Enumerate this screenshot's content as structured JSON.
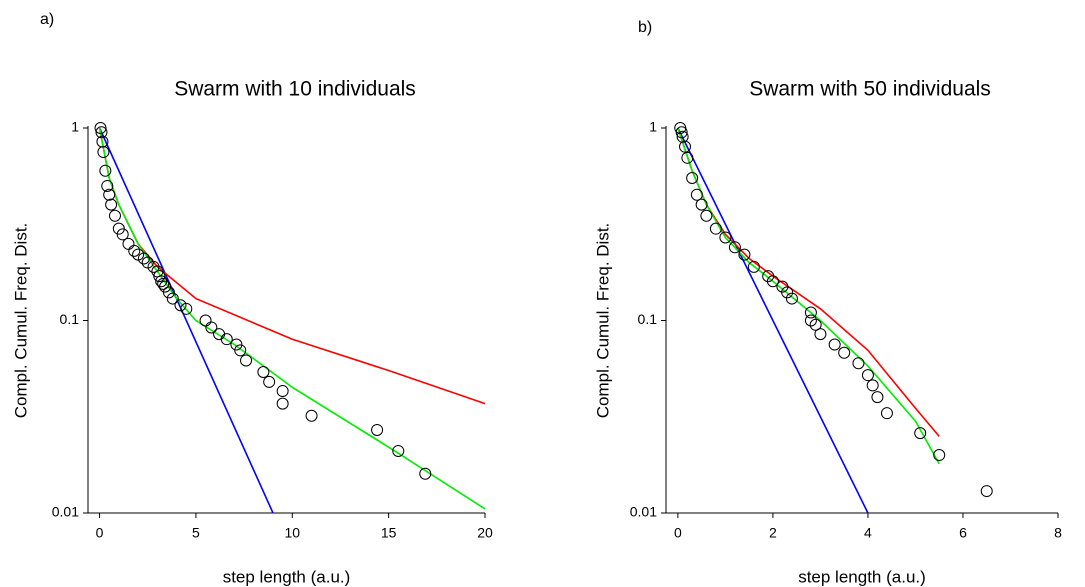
{
  "chart_data": [
    {
      "type": "scatter",
      "label": "a)",
      "title": "Swarm with 10 individuals",
      "x_label": "step length (a.u.)",
      "y_label": "Compl. Cumul. Freq. Dist.",
      "xlim": [
        -0.6,
        20
      ],
      "xticks": [
        0,
        5,
        10,
        15,
        20
      ],
      "ylim": [
        0.01,
        1
      ],
      "yticks": [
        1,
        0.1,
        0.01
      ],
      "log_y": true,
      "series": [
        {
          "type": "line",
          "color": "#0000ff",
          "x": [
            0,
            9
          ],
          "values": [
            1,
            0.01
          ]
        },
        {
          "type": "line",
          "color": "#ff0000",
          "x": [
            0,
            0.5,
            1,
            2,
            3,
            5,
            10,
            15,
            20
          ],
          "values": [
            1,
            0.55,
            0.4,
            0.25,
            0.19,
            0.13,
            0.08,
            0.055,
            0.037
          ]
        },
        {
          "type": "line",
          "color": "#00ee00",
          "x": [
            0,
            0.5,
            1,
            2,
            3,
            4,
            5,
            7,
            10,
            15,
            20
          ],
          "values": [
            1,
            0.55,
            0.4,
            0.25,
            0.18,
            0.13,
            0.1,
            0.075,
            0.045,
            0.022,
            0.0105
          ]
        },
        {
          "type": "markers",
          "color": "#000000",
          "x": [
            0.05,
            0.1,
            0.15,
            0.2,
            0.3,
            0.4,
            0.5,
            0.6,
            0.8,
            1.0,
            1.2,
            1.5,
            1.8,
            2.0,
            2.3,
            2.5,
            2.8,
            3.0,
            3.1,
            3.2,
            3.3,
            3.4,
            3.6,
            3.8,
            4.2,
            4.5,
            5.5,
            5.8,
            6.2,
            6.6,
            7.1,
            7.3,
            7.6,
            8.5,
            8.8,
            9.5,
            9.5,
            11,
            14.4,
            15.5,
            16.9
          ],
          "values": [
            1,
            0.95,
            0.85,
            0.75,
            0.6,
            0.5,
            0.45,
            0.4,
            0.35,
            0.3,
            0.28,
            0.25,
            0.23,
            0.22,
            0.21,
            0.2,
            0.19,
            0.18,
            0.17,
            0.16,
            0.155,
            0.15,
            0.14,
            0.13,
            0.12,
            0.115,
            0.1,
            0.092,
            0.085,
            0.08,
            0.075,
            0.07,
            0.062,
            0.054,
            0.048,
            0.043,
            0.037,
            0.032,
            0.027,
            0.021,
            0.016
          ]
        }
      ]
    },
    {
      "type": "scatter",
      "label": "b)",
      "title": "Swarm with 50 individuals",
      "x_label": "step length (a.u.)",
      "y_label": "Compl. Cumul. Freq. Dist.",
      "xlim": [
        -0.25,
        8
      ],
      "xticks": [
        0,
        2,
        4,
        6,
        8
      ],
      "ylim": [
        0.01,
        1
      ],
      "yticks": [
        1,
        0.1,
        0.01
      ],
      "log_y": true,
      "series": [
        {
          "type": "line",
          "color": "#0000ff",
          "x": [
            0,
            4
          ],
          "values": [
            1,
            0.01
          ]
        },
        {
          "type": "line",
          "color": "#ff0000",
          "x": [
            0,
            0.3,
            0.6,
            1,
            1.5,
            2,
            3,
            4,
            5,
            5.5
          ],
          "values": [
            1,
            0.6,
            0.4,
            0.28,
            0.21,
            0.17,
            0.115,
            0.07,
            0.035,
            0.025
          ]
        },
        {
          "type": "line",
          "color": "#00ee00",
          "x": [
            0,
            0.3,
            0.6,
            1,
            1.5,
            2,
            3,
            4,
            5,
            5.5
          ],
          "values": [
            1,
            0.6,
            0.4,
            0.27,
            0.2,
            0.16,
            0.1,
            0.058,
            0.03,
            0.018
          ]
        },
        {
          "type": "markers",
          "color": "#000000",
          "x": [
            0.05,
            0.08,
            0.1,
            0.15,
            0.2,
            0.3,
            0.4,
            0.5,
            0.6,
            0.8,
            1.0,
            1.2,
            1.4,
            1.6,
            1.9,
            2.0,
            2.2,
            2.3,
            2.4,
            2.8,
            2.8,
            2.9,
            3.0,
            3.3,
            3.5,
            3.8,
            4.0,
            4.1,
            4.2,
            4.4,
            5.1,
            5.5,
            6.5
          ],
          "values": [
            1,
            0.95,
            0.9,
            0.8,
            0.7,
            0.55,
            0.45,
            0.4,
            0.35,
            0.3,
            0.27,
            0.24,
            0.22,
            0.19,
            0.17,
            0.16,
            0.15,
            0.14,
            0.13,
            0.11,
            0.1,
            0.095,
            0.085,
            0.075,
            0.068,
            0.06,
            0.052,
            0.046,
            0.04,
            0.033,
            0.026,
            0.02,
            0.013
          ]
        }
      ]
    }
  ]
}
